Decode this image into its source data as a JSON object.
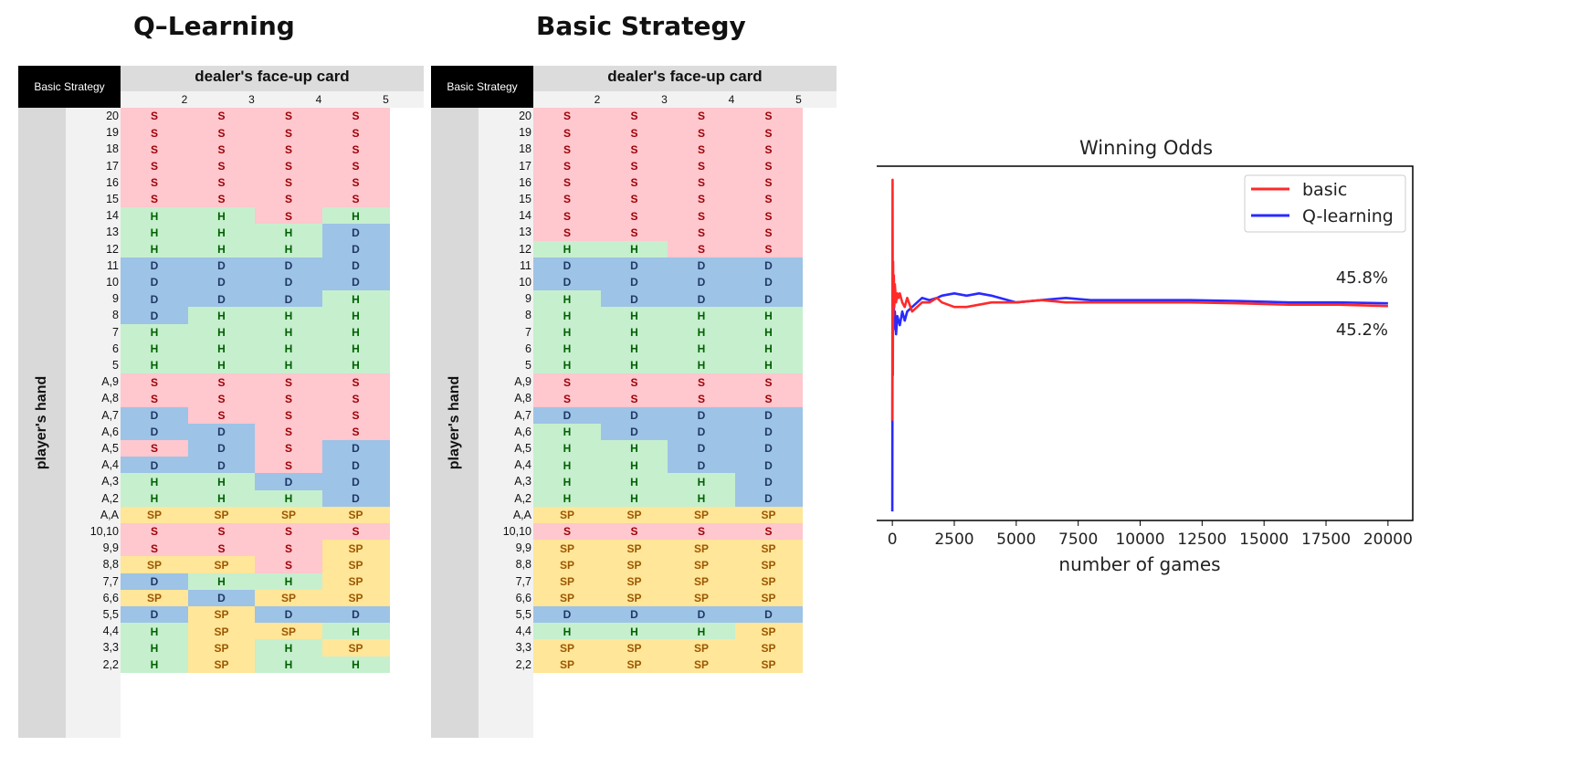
{
  "colors": {
    "S": "#ffc7ce",
    "H": "#c6efce",
    "D": "#9dc3e6",
    "SP": "#ffe699",
    "basic": "#ff2a2a",
    "q_learning": "#2a2aff"
  },
  "dealer_columns": [
    "2",
    "3",
    "4",
    "5"
  ],
  "row_labels": [
    "20",
    "19",
    "18",
    "17",
    "16",
    "15",
    "14",
    "13",
    "12",
    "11",
    "10",
    "9",
    "8",
    "7",
    "6",
    "5",
    "A,9",
    "A,8",
    "A,7",
    "A,6",
    "A,5",
    "A,4",
    "A,3",
    "A,2",
    "A,A",
    "10,10",
    "9,9",
    "8,8",
    "7,7",
    "6,6",
    "5,5",
    "4,4",
    "3,3",
    "2,2"
  ],
  "tables": [
    {
      "title": "Q–Learning",
      "corner_label": "Basic Strategy",
      "header": "dealer's face-up card",
      "side_label": "player's hand",
      "cells": [
        [
          "S",
          "S",
          "S",
          "S"
        ],
        [
          "S",
          "S",
          "S",
          "S"
        ],
        [
          "S",
          "S",
          "S",
          "S"
        ],
        [
          "S",
          "S",
          "S",
          "S"
        ],
        [
          "S",
          "S",
          "S",
          "S"
        ],
        [
          "S",
          "S",
          "S",
          "S"
        ],
        [
          "H",
          "H",
          "S",
          "H"
        ],
        [
          "H",
          "H",
          "H",
          "D"
        ],
        [
          "H",
          "H",
          "H",
          "D"
        ],
        [
          "D",
          "D",
          "D",
          "D"
        ],
        [
          "D",
          "D",
          "D",
          "D"
        ],
        [
          "D",
          "D",
          "D",
          "H"
        ],
        [
          "D",
          "H",
          "H",
          "H"
        ],
        [
          "H",
          "H",
          "H",
          "H"
        ],
        [
          "H",
          "H",
          "H",
          "H"
        ],
        [
          "H",
          "H",
          "H",
          "H"
        ],
        [
          "S",
          "S",
          "S",
          "S"
        ],
        [
          "S",
          "S",
          "S",
          "S"
        ],
        [
          "D",
          "S",
          "S",
          "S"
        ],
        [
          "D",
          "D",
          "S",
          "S"
        ],
        [
          "S",
          "D",
          "S",
          "D"
        ],
        [
          "D",
          "D",
          "S",
          "D"
        ],
        [
          "H",
          "H",
          "D",
          "D"
        ],
        [
          "H",
          "H",
          "H",
          "D"
        ],
        [
          "SP",
          "SP",
          "SP",
          "SP"
        ],
        [
          "S",
          "S",
          "S",
          "S"
        ],
        [
          "S",
          "S",
          "S",
          "SP"
        ],
        [
          "SP",
          "SP",
          "S",
          "SP"
        ],
        [
          "D",
          "H",
          "H",
          "SP"
        ],
        [
          "SP",
          "D",
          "SP",
          "SP"
        ],
        [
          "D",
          "SP",
          "D",
          "D"
        ],
        [
          "H",
          "SP",
          "SP",
          "H"
        ],
        [
          "H",
          "SP",
          "H",
          "SP"
        ],
        [
          "H",
          "SP",
          "H",
          "H"
        ]
      ]
    },
    {
      "title": "Basic Strategy",
      "corner_label": "Basic Strategy",
      "header": "dealer's face-up card",
      "side_label": "player's hand",
      "cells": [
        [
          "S",
          "S",
          "S",
          "S"
        ],
        [
          "S",
          "S",
          "S",
          "S"
        ],
        [
          "S",
          "S",
          "S",
          "S"
        ],
        [
          "S",
          "S",
          "S",
          "S"
        ],
        [
          "S",
          "S",
          "S",
          "S"
        ],
        [
          "S",
          "S",
          "S",
          "S"
        ],
        [
          "S",
          "S",
          "S",
          "S"
        ],
        [
          "S",
          "S",
          "S",
          "S"
        ],
        [
          "H",
          "H",
          "S",
          "S"
        ],
        [
          "D",
          "D",
          "D",
          "D"
        ],
        [
          "D",
          "D",
          "D",
          "D"
        ],
        [
          "H",
          "D",
          "D",
          "D"
        ],
        [
          "H",
          "H",
          "H",
          "H"
        ],
        [
          "H",
          "H",
          "H",
          "H"
        ],
        [
          "H",
          "H",
          "H",
          "H"
        ],
        [
          "H",
          "H",
          "H",
          "H"
        ],
        [
          "S",
          "S",
          "S",
          "S"
        ],
        [
          "S",
          "S",
          "S",
          "S"
        ],
        [
          "D",
          "D",
          "D",
          "D"
        ],
        [
          "H",
          "D",
          "D",
          "D"
        ],
        [
          "H",
          "H",
          "D",
          "D"
        ],
        [
          "H",
          "H",
          "D",
          "D"
        ],
        [
          "H",
          "H",
          "H",
          "D"
        ],
        [
          "H",
          "H",
          "H",
          "D"
        ],
        [
          "SP",
          "SP",
          "SP",
          "SP"
        ],
        [
          "S",
          "S",
          "S",
          "S"
        ],
        [
          "SP",
          "SP",
          "SP",
          "SP"
        ],
        [
          "SP",
          "SP",
          "SP",
          "SP"
        ],
        [
          "SP",
          "SP",
          "SP",
          "SP"
        ],
        [
          "SP",
          "SP",
          "SP",
          "SP"
        ],
        [
          "D",
          "D",
          "D",
          "D"
        ],
        [
          "H",
          "H",
          "H",
          "SP"
        ],
        [
          "SP",
          "SP",
          "SP",
          "SP"
        ],
        [
          "SP",
          "SP",
          "SP",
          "SP"
        ]
      ]
    }
  ],
  "chart_data": {
    "type": "line",
    "title": "Winning Odds",
    "xlabel": "number of games",
    "ylabel": "",
    "xlim": [
      -1000,
      21000
    ],
    "ylim": [
      -0.02,
      0.76
    ],
    "xticks": [
      0,
      2500,
      5000,
      7500,
      10000,
      12500,
      15000,
      17500,
      20000
    ],
    "yticks": [
      0.0,
      0.1,
      0.2,
      0.3,
      0.4,
      0.5,
      0.6,
      0.7
    ],
    "legend_position": "top-right",
    "series": [
      {
        "name": "basic",
        "color": "#ff2a2a",
        "final_label": "45.2%",
        "x": [
          0,
          10,
          20,
          30,
          40,
          60,
          80,
          100,
          150,
          200,
          250,
          300,
          400,
          500,
          600,
          800,
          1000,
          1200,
          1500,
          1800,
          2000,
          2500,
          3000,
          3500,
          4000,
          5000,
          6000,
          7000,
          8000,
          10000,
          12000,
          14000,
          16000,
          18000,
          20000
        ],
        "y": [
          0.2,
          0.73,
          0.3,
          0.55,
          0.43,
          0.52,
          0.45,
          0.5,
          0.46,
          0.48,
          0.47,
          0.48,
          0.46,
          0.45,
          0.47,
          0.44,
          0.45,
          0.46,
          0.46,
          0.47,
          0.46,
          0.45,
          0.45,
          0.455,
          0.46,
          0.46,
          0.465,
          0.46,
          0.46,
          0.46,
          0.46,
          0.458,
          0.455,
          0.455,
          0.452
        ]
      },
      {
        "name": "Q-learning",
        "color": "#2a2aff",
        "final_label": "45.8%",
        "x": [
          0,
          10,
          20,
          30,
          40,
          60,
          80,
          100,
          150,
          200,
          300,
          400,
          500,
          600,
          800,
          1000,
          1200,
          1500,
          1800,
          2000,
          2500,
          3000,
          3500,
          4000,
          5000,
          6000,
          7000,
          8000,
          10000,
          12000,
          14000,
          16000,
          18000,
          20000
        ],
        "y": [
          0.0,
          0.47,
          0.42,
          0.49,
          0.4,
          0.45,
          0.41,
          0.44,
          0.39,
          0.43,
          0.41,
          0.44,
          0.42,
          0.44,
          0.45,
          0.46,
          0.47,
          0.465,
          0.47,
          0.475,
          0.48,
          0.475,
          0.48,
          0.475,
          0.46,
          0.465,
          0.47,
          0.465,
          0.465,
          0.465,
          0.463,
          0.46,
          0.46,
          0.458
        ]
      }
    ]
  }
}
